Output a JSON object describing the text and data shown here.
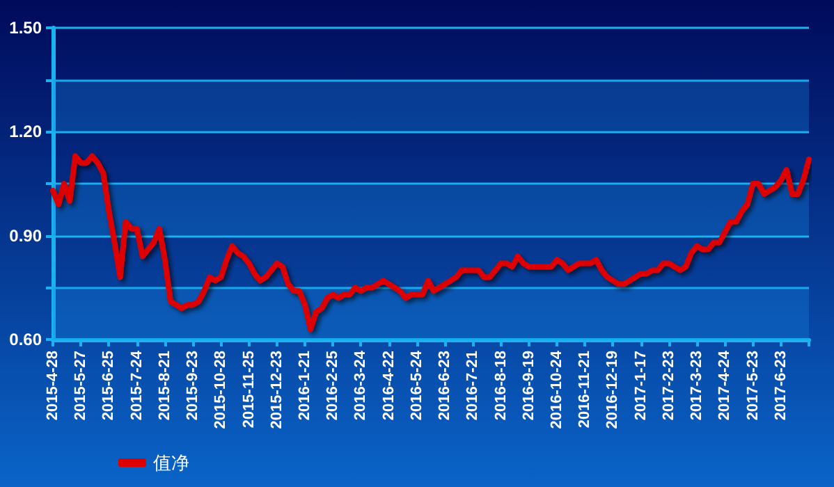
{
  "chart_data": {
    "type": "line",
    "categories": [
      "2015-4-28",
      null,
      null,
      null,
      null,
      "2015-5-27",
      null,
      null,
      null,
      null,
      "2015-6-25",
      null,
      null,
      null,
      null,
      "2015-7-24",
      null,
      null,
      null,
      null,
      "2015-8-21",
      null,
      null,
      null,
      null,
      "2015-9-23",
      null,
      null,
      null,
      null,
      "2015-10-28",
      null,
      null,
      null,
      null,
      "2015-11-25",
      null,
      null,
      null,
      null,
      "2015-12-23",
      null,
      null,
      null,
      null,
      "2016-1-21",
      null,
      null,
      null,
      null,
      "2016-2-25",
      null,
      null,
      null,
      null,
      "2016-3-24",
      null,
      null,
      null,
      null,
      "2016-4-22",
      null,
      null,
      null,
      null,
      "2016-5-24",
      null,
      null,
      null,
      null,
      "2016-6-23",
      null,
      null,
      null,
      null,
      "2016-7-21",
      null,
      null,
      null,
      null,
      "2016-8-18",
      null,
      null,
      null,
      null,
      "2016-9-19",
      null,
      null,
      null,
      null,
      "2016-10-24",
      null,
      null,
      null,
      null,
      "2016-11-21",
      null,
      null,
      null,
      null,
      "2016-12-19",
      null,
      null,
      null,
      null,
      "2017-1-17",
      null,
      null,
      null,
      null,
      "2017-2-23",
      null,
      null,
      null,
      null,
      "2017-3-23",
      null,
      null,
      null,
      null,
      "2017-4-24",
      null,
      null,
      null,
      null,
      "2017-5-23",
      null,
      null,
      null,
      null,
      "2017-6-23",
      null,
      null,
      null,
      null,
      null
    ],
    "series": [
      {
        "name": "值净",
        "color": "#dd0000",
        "values": [
          1.03,
          0.99,
          1.05,
          1.0,
          1.13,
          1.11,
          1.11,
          1.13,
          1.11,
          1.08,
          0.97,
          0.88,
          0.78,
          0.94,
          0.92,
          0.92,
          0.84,
          0.86,
          0.88,
          0.92,
          0.83,
          0.71,
          0.7,
          0.69,
          0.7,
          0.7,
          0.71,
          0.74,
          0.78,
          0.77,
          0.78,
          0.83,
          0.87,
          0.85,
          0.84,
          0.82,
          0.79,
          0.77,
          0.78,
          0.8,
          0.82,
          0.81,
          0.76,
          0.74,
          0.74,
          0.7,
          0.63,
          0.68,
          0.69,
          0.72,
          0.73,
          0.72,
          0.73,
          0.73,
          0.75,
          0.74,
          0.75,
          0.75,
          0.76,
          0.77,
          0.76,
          0.75,
          0.74,
          0.72,
          0.73,
          0.73,
          0.73,
          0.77,
          0.74,
          0.75,
          0.76,
          0.77,
          0.78,
          0.8,
          0.8,
          0.8,
          0.8,
          0.78,
          0.78,
          0.8,
          0.82,
          0.82,
          0.81,
          0.84,
          0.82,
          0.81,
          0.81,
          0.81,
          0.81,
          0.81,
          0.83,
          0.82,
          0.8,
          0.81,
          0.82,
          0.82,
          0.82,
          0.83,
          0.8,
          0.78,
          0.77,
          0.76,
          0.76,
          0.77,
          0.78,
          0.79,
          0.79,
          0.8,
          0.8,
          0.82,
          0.82,
          0.81,
          0.8,
          0.81,
          0.85,
          0.87,
          0.86,
          0.86,
          0.88,
          0.88,
          0.91,
          0.94,
          0.94,
          0.97,
          0.99,
          1.05,
          1.05,
          1.02,
          1.03,
          1.04,
          1.06,
          1.09,
          1.02,
          1.02,
          1.06,
          1.12
        ]
      }
    ],
    "ylim": [
      0.6,
      1.5
    ],
    "yticks": [
      {
        "value": 0.6,
        "label": "0.60"
      },
      {
        "value": 0.75,
        "label": null
      },
      {
        "value": 0.9,
        "label": "0.90"
      },
      {
        "value": 1.05,
        "label": null
      },
      {
        "value": 1.2,
        "label": "1.20"
      },
      {
        "value": 1.35,
        "label": null
      },
      {
        "value": 1.5,
        "label": "1.50"
      }
    ],
    "grid": true,
    "bands": [
      {
        "axis": "y",
        "from": 0.6,
        "to": 0.75,
        "color": "#148ce6"
      },
      {
        "axis": "y",
        "from": 0.9,
        "to": 1.05,
        "color": "#148ce6"
      },
      {
        "axis": "y",
        "from": 1.2,
        "to": 1.35,
        "color": "#148ce6"
      }
    ],
    "legend": "bottom left",
    "marker": "none",
    "line_style": "solid"
  }
}
